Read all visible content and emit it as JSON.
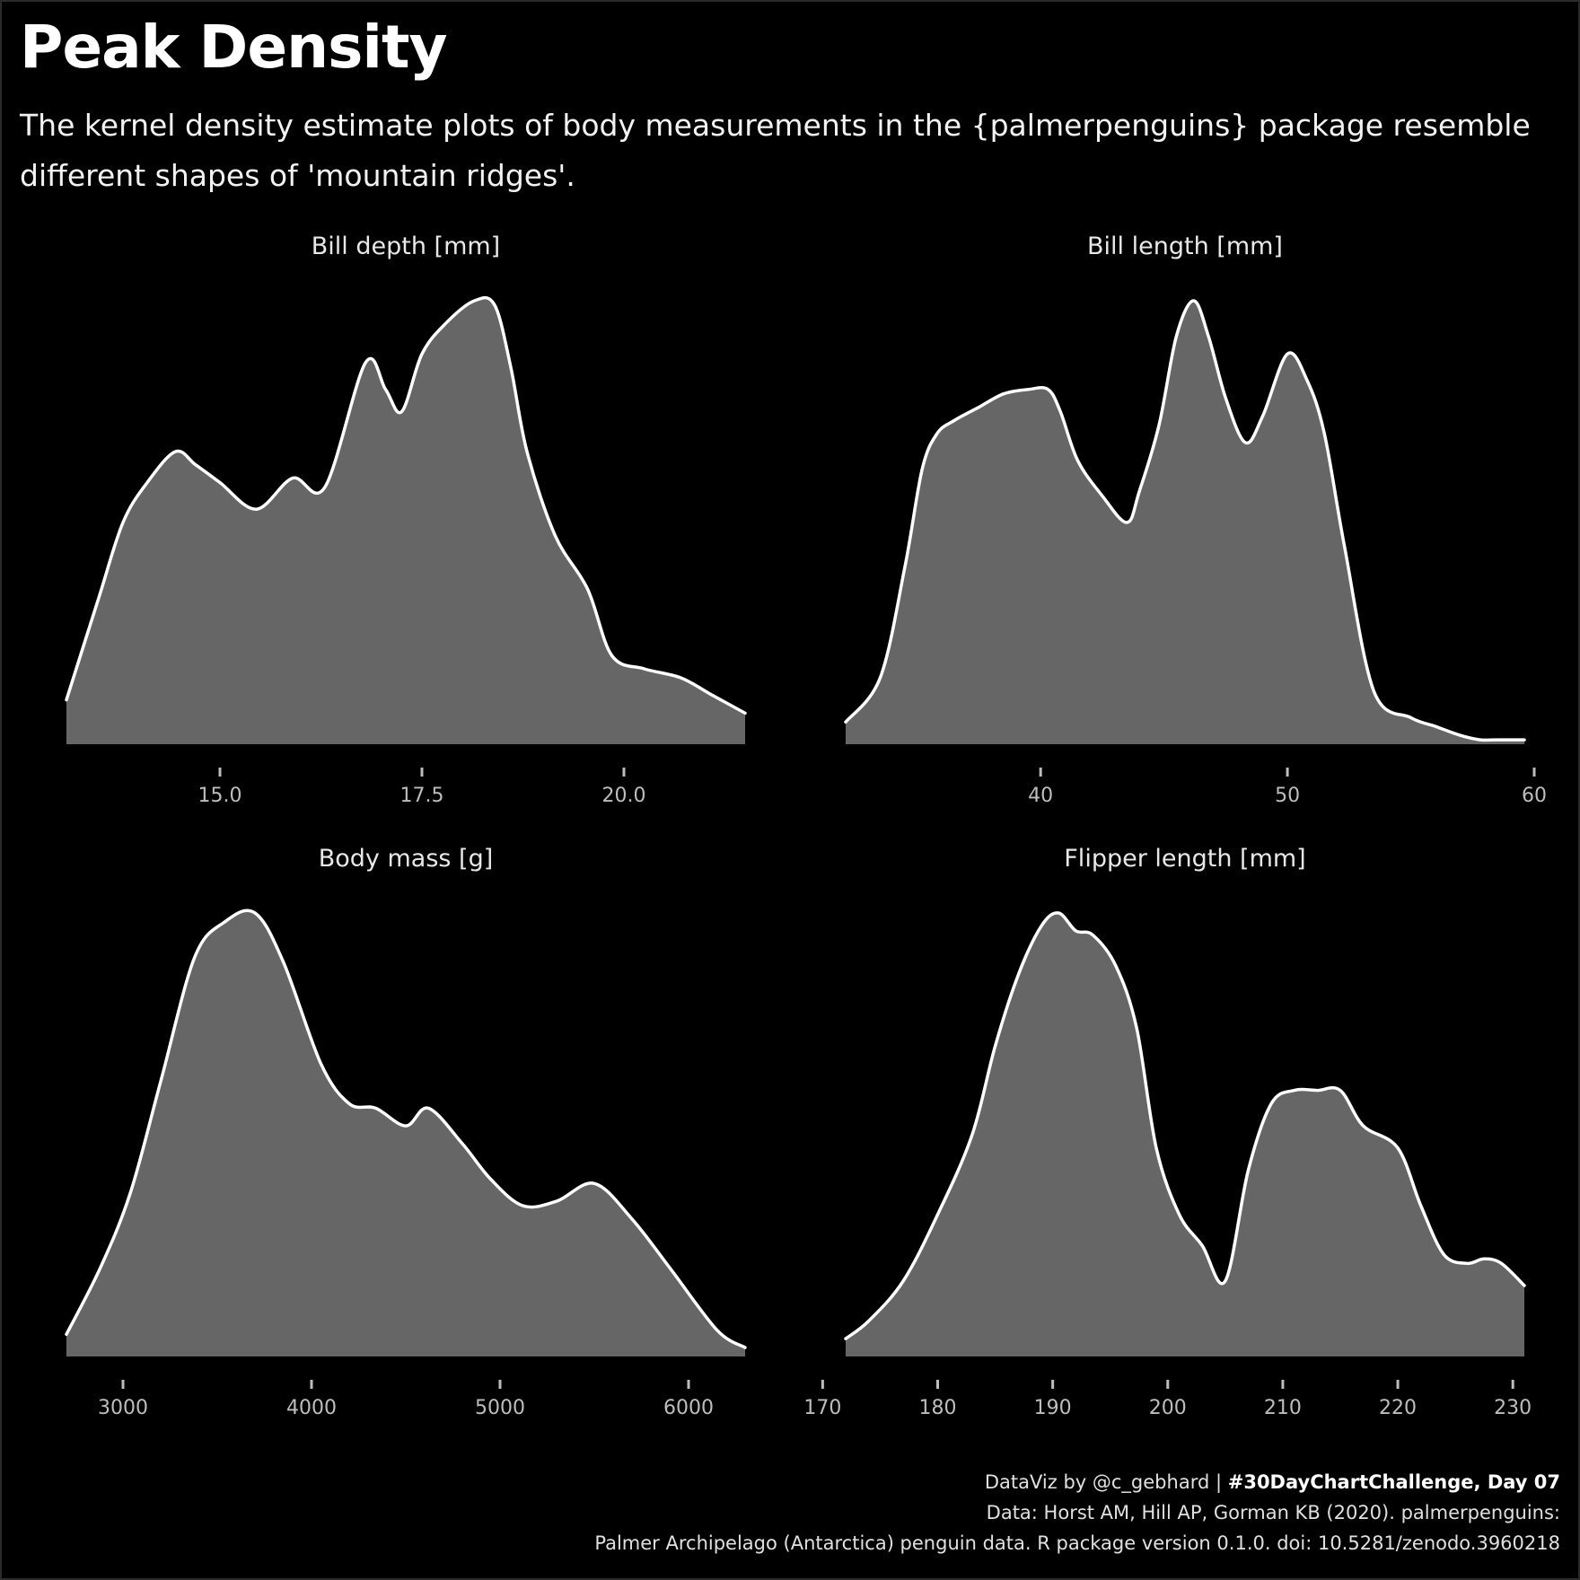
{
  "title": "Peak Density",
  "subtitle": "The kernel density estimate plots of body measurements in the {palmerpenguins} package resemble different shapes of 'mountain ridges'.",
  "colors": {
    "background": "#000000",
    "fill": "#666666",
    "line": "#ffffff",
    "tick": "#bdbdbd"
  },
  "caption": {
    "line1_prefix": "DataViz by @c_gebhard |",
    "line1_bold": "#30DayChartChallenge, Day 07",
    "line2": "Data: Horst AM, Hill AP, Gorman KB (2020). palmerpenguins:",
    "line3": "Palmer Archipelago (Antarctica) penguin data. R package version 0.1.0. doi: 10.5281/zenodo.3960218"
  },
  "chart_data": [
    {
      "type": "area",
      "title": "Bill depth [mm]",
      "xlim": [
        13.1,
        21.5
      ],
      "ylim": [
        0,
        1
      ],
      "xticks": [
        15.0,
        17.5,
        20.0
      ],
      "xtick_labels": [
        "15.0",
        "17.5",
        "20.0"
      ],
      "grid": false,
      "x": [
        13.1,
        13.5,
        13.8,
        14.1,
        14.45,
        14.7,
        15.0,
        15.45,
        15.9,
        16.3,
        16.8,
        17.05,
        17.25,
        17.5,
        17.8,
        18.15,
        18.4,
        18.6,
        18.8,
        19.15,
        19.55,
        19.85,
        20.25,
        20.7,
        21.1,
        21.5
      ],
      "y": [
        0.1,
        0.33,
        0.5,
        0.59,
        0.66,
        0.63,
        0.59,
        0.53,
        0.6,
        0.58,
        0.86,
        0.8,
        0.75,
        0.88,
        0.95,
        1.0,
        0.99,
        0.85,
        0.66,
        0.47,
        0.35,
        0.2,
        0.17,
        0.15,
        0.11,
        0.07
      ]
    },
    {
      "type": "area",
      "title": "Bill length [mm]",
      "xlim": [
        32.1,
        59.6
      ],
      "ylim": [
        0,
        1
      ],
      "xticks": [
        40,
        50,
        60
      ],
      "xtick_labels": [
        "40",
        "50",
        "60"
      ],
      "grid": false,
      "x": [
        32.1,
        33.5,
        34.5,
        35.2,
        35.8,
        36.5,
        37.5,
        38.5,
        39.5,
        40.3,
        40.8,
        41.5,
        42.5,
        43.5,
        44.0,
        44.8,
        45.5,
        46.2,
        46.8,
        47.5,
        48.3,
        49.0,
        50.0,
        50.8,
        51.5,
        52.3,
        53.5,
        55.0,
        56.0,
        57.0,
        57.8,
        58.5,
        59.6
      ],
      "y": [
        0.05,
        0.15,
        0.4,
        0.62,
        0.7,
        0.73,
        0.76,
        0.79,
        0.8,
        0.8,
        0.75,
        0.64,
        0.56,
        0.5,
        0.57,
        0.72,
        0.92,
        1.0,
        0.92,
        0.78,
        0.68,
        0.74,
        0.88,
        0.82,
        0.7,
        0.45,
        0.12,
        0.06,
        0.04,
        0.02,
        0.01,
        0.01,
        0.01
      ]
    },
    {
      "type": "area",
      "title": "Body mass [g]",
      "xlim": [
        2700,
        6300
      ],
      "ylim": [
        0,
        1
      ],
      "xticks": [
        3000,
        4000,
        5000,
        6000
      ],
      "xtick_labels": [
        "3000",
        "4000",
        "5000",
        "6000"
      ],
      "grid": false,
      "x": [
        2700,
        2880,
        3040,
        3200,
        3380,
        3540,
        3700,
        3850,
        4050,
        4200,
        4340,
        4500,
        4620,
        4800,
        4950,
        5120,
        5300,
        5500,
        5700,
        5900,
        6150,
        6300
      ],
      "y": [
        0.05,
        0.2,
        0.37,
        0.62,
        0.9,
        0.98,
        1.0,
        0.89,
        0.66,
        0.57,
        0.56,
        0.52,
        0.56,
        0.48,
        0.4,
        0.34,
        0.35,
        0.39,
        0.31,
        0.2,
        0.06,
        0.02
      ]
    },
    {
      "type": "area",
      "title": "Flipper length [mm]",
      "xlim": [
        172,
        231
      ],
      "ylim": [
        0,
        1
      ],
      "xticks": [
        170,
        180,
        190,
        200,
        210,
        220,
        230
      ],
      "xtick_labels": [
        "170",
        "180",
        "190",
        "200",
        "210",
        "220",
        "230"
      ],
      "grid": false,
      "x": [
        172,
        174,
        177,
        180,
        183,
        185,
        187,
        189,
        190.5,
        192,
        193.5,
        195.5,
        197.3,
        199,
        201,
        203,
        205,
        207,
        209,
        211,
        213,
        215,
        217,
        220,
        222,
        224,
        226,
        227.5,
        229,
        231
      ],
      "y": [
        0.04,
        0.08,
        0.17,
        0.32,
        0.5,
        0.7,
        0.86,
        0.97,
        1.0,
        0.96,
        0.95,
        0.88,
        0.74,
        0.47,
        0.32,
        0.25,
        0.17,
        0.42,
        0.57,
        0.6,
        0.6,
        0.6,
        0.52,
        0.47,
        0.34,
        0.23,
        0.21,
        0.22,
        0.21,
        0.16
      ]
    }
  ]
}
